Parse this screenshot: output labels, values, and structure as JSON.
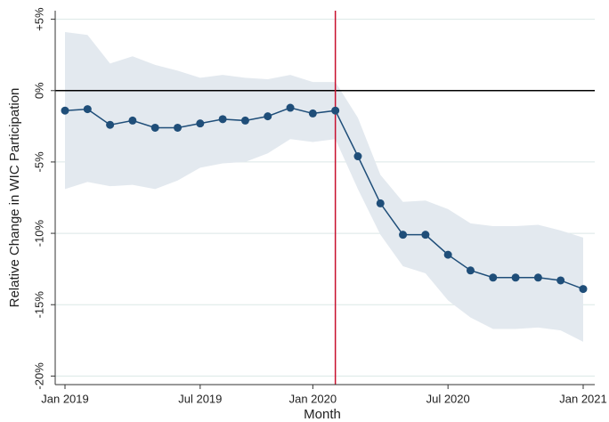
{
  "chart_data": {
    "type": "line",
    "x_label": "Month",
    "y_label": "Relative Change in WIC Participation",
    "categories": [
      "Jan 2019",
      null,
      null,
      null,
      null,
      null,
      "Jul 2019",
      null,
      null,
      null,
      null,
      "Jan 2020",
      null,
      null,
      null,
      null,
      null,
      "Jul 2020",
      null,
      null,
      null,
      null,
      null,
      "Jan 2021"
    ],
    "series": [
      {
        "color": "#1f4e79",
        "values": [
          -1.4,
          -1.3,
          -2.4,
          -2.1,
          -2.6,
          -2.6,
          -2.3,
          -2.0,
          -2.1,
          -1.8,
          -1.2,
          -1.6,
          -1.4,
          -4.6,
          -7.9,
          -10.1,
          -10.1,
          -11.5,
          -12.6,
          -13.1,
          -13.1,
          -13.1,
          -13.3,
          -13.9
        ]
      }
    ],
    "band": {
      "color": "#e3e9ef",
      "upper": [
        4.1,
        3.9,
        1.9,
        2.4,
        1.8,
        1.4,
        0.9,
        1.1,
        0.9,
        0.8,
        1.1,
        0.6,
        0.6,
        -1.9,
        -5.9,
        -7.8,
        -7.7,
        -8.3,
        -9.3,
        -9.5,
        -9.5,
        -9.4,
        -9.8,
        -10.3
      ],
      "lower": [
        -6.9,
        -6.4,
        -6.7,
        -6.6,
        -6.9,
        -6.3,
        -5.4,
        -5.1,
        -5.0,
        -4.4,
        -3.4,
        -3.6,
        -3.4,
        -6.9,
        -10.1,
        -12.3,
        -12.8,
        -14.7,
        -15.9,
        -16.7,
        -16.7,
        -16.6,
        -16.8,
        -17.6
      ]
    },
    "ylim": [
      -20.6,
      5.6
    ],
    "yticks": [
      {
        "value": 5,
        "label": "+5%"
      },
      {
        "value": 0,
        "label": "0%"
      },
      {
        "value": -5,
        "label": "-5%"
      },
      {
        "value": -10,
        "label": "-10%"
      },
      {
        "value": -15,
        "label": "-15%"
      },
      {
        "value": -20,
        "label": "-20%"
      }
    ],
    "grid": true,
    "grid_color": "#dbe8e6",
    "hline": 0,
    "vline": 12,
    "vline_color": "#c8102e"
  }
}
